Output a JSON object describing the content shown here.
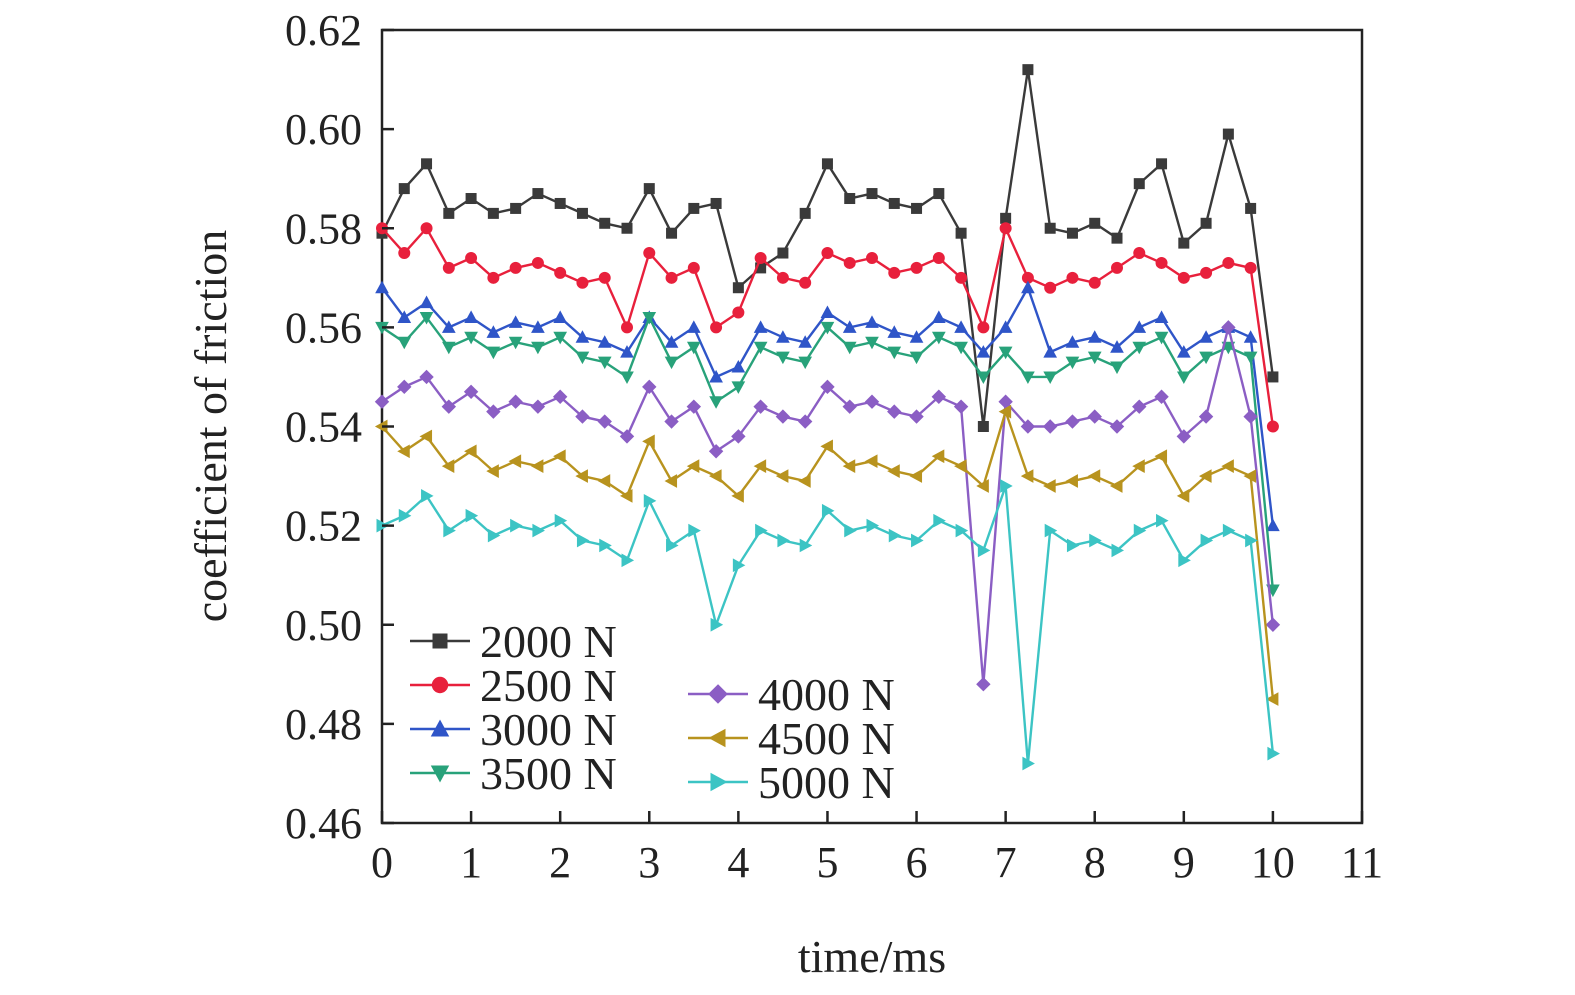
{
  "chart_data": {
    "type": "line",
    "title": "",
    "xlabel": "time/ms",
    "ylabel": "coefficient of friction",
    "xlim": [
      0,
      11
    ],
    "ylim": [
      0.46,
      0.62
    ],
    "xticks": [
      "0",
      "1",
      "2",
      "3",
      "4",
      "5",
      "6",
      "7",
      "8",
      "9",
      "10",
      "11"
    ],
    "yticks": [
      "0.46",
      "0.48",
      "0.50",
      "0.52",
      "0.54",
      "0.56",
      "0.58",
      "0.60",
      "0.62"
    ],
    "grid": false,
    "legend_position": "bottom-left",
    "x": [
      0,
      0.25,
      0.5,
      0.75,
      1,
      1.25,
      1.5,
      1.75,
      2,
      2.25,
      2.5,
      2.75,
      3,
      3.25,
      3.5,
      3.75,
      4,
      4.25,
      4.5,
      4.75,
      5,
      5.25,
      5.5,
      5.75,
      6,
      6.25,
      6.5,
      6.75,
      7,
      7.25,
      7.5,
      7.75,
      8,
      8.25,
      8.5,
      8.75,
      9,
      9.25,
      9.5,
      9.75,
      10
    ],
    "series": [
      {
        "name": "2000 N",
        "color": "#3a3a3a",
        "marker": "square",
        "values": [
          0.579,
          0.588,
          0.593,
          0.583,
          0.586,
          0.583,
          0.584,
          0.587,
          0.585,
          0.583,
          0.581,
          0.58,
          0.588,
          0.579,
          0.584,
          0.585,
          0.568,
          0.572,
          0.575,
          0.583,
          0.593,
          0.586,
          0.587,
          0.585,
          0.584,
          0.587,
          0.579,
          0.54,
          0.582,
          0.612,
          0.58,
          0.579,
          0.581,
          0.578,
          0.589,
          0.593,
          0.577,
          0.581,
          0.599,
          0.584,
          0.55
        ]
      },
      {
        "name": "2500 N",
        "color": "#e8203c",
        "marker": "circle",
        "values": [
          0.58,
          0.575,
          0.58,
          0.572,
          0.574,
          0.57,
          0.572,
          0.573,
          0.571,
          0.569,
          0.57,
          0.56,
          0.575,
          0.57,
          0.572,
          0.56,
          0.563,
          0.574,
          0.57,
          0.569,
          0.575,
          0.573,
          0.574,
          0.571,
          0.572,
          0.574,
          0.57,
          0.56,
          0.58,
          0.57,
          0.568,
          0.57,
          0.569,
          0.572,
          0.575,
          0.573,
          0.57,
          0.571,
          0.573,
          0.572,
          0.54
        ]
      },
      {
        "name": "3000 N",
        "color": "#2f55c8",
        "marker": "triangle-up",
        "values": [
          0.568,
          0.562,
          0.565,
          0.56,
          0.562,
          0.559,
          0.561,
          0.56,
          0.562,
          0.558,
          0.557,
          0.555,
          0.562,
          0.557,
          0.56,
          0.55,
          0.552,
          0.56,
          0.558,
          0.557,
          0.563,
          0.56,
          0.561,
          0.559,
          0.558,
          0.562,
          0.56,
          0.555,
          0.56,
          0.568,
          0.555,
          0.557,
          0.558,
          0.556,
          0.56,
          0.562,
          0.555,
          0.558,
          0.56,
          0.558,
          0.52
        ]
      },
      {
        "name": "3500 N",
        "color": "#28a27a",
        "marker": "triangle-down",
        "values": [
          0.56,
          0.557,
          0.562,
          0.556,
          0.558,
          0.555,
          0.557,
          0.556,
          0.558,
          0.554,
          0.553,
          0.55,
          0.562,
          0.553,
          0.556,
          0.545,
          0.548,
          0.556,
          0.554,
          0.553,
          0.56,
          0.556,
          0.557,
          0.555,
          0.554,
          0.558,
          0.556,
          0.55,
          0.555,
          0.55,
          0.55,
          0.553,
          0.554,
          0.552,
          0.556,
          0.558,
          0.55,
          0.554,
          0.556,
          0.554,
          0.507
        ]
      },
      {
        "name": "4000 N",
        "color": "#8b5ec4",
        "marker": "diamond",
        "values": [
          0.545,
          0.548,
          0.55,
          0.544,
          0.547,
          0.543,
          0.545,
          0.544,
          0.546,
          0.542,
          0.541,
          0.538,
          0.548,
          0.541,
          0.544,
          0.535,
          0.538,
          0.544,
          0.542,
          0.541,
          0.548,
          0.544,
          0.545,
          0.543,
          0.542,
          0.546,
          0.544,
          0.488,
          0.545,
          0.54,
          0.54,
          0.541,
          0.542,
          0.54,
          0.544,
          0.546,
          0.538,
          0.542,
          0.56,
          0.542,
          0.5
        ]
      },
      {
        "name": "4500 N",
        "color": "#b8931e",
        "marker": "triangle-left",
        "values": [
          0.54,
          0.535,
          0.538,
          0.532,
          0.535,
          0.531,
          0.533,
          0.532,
          0.534,
          0.53,
          0.529,
          0.526,
          0.537,
          0.529,
          0.532,
          0.53,
          0.526,
          0.532,
          0.53,
          0.529,
          0.536,
          0.532,
          0.533,
          0.531,
          0.53,
          0.534,
          0.532,
          0.528,
          0.543,
          0.53,
          0.528,
          0.529,
          0.53,
          0.528,
          0.532,
          0.534,
          0.526,
          0.53,
          0.532,
          0.53,
          0.485
        ]
      },
      {
        "name": "5000 N",
        "color": "#3cc4c4",
        "marker": "triangle-right",
        "values": [
          0.52,
          0.522,
          0.526,
          0.519,
          0.522,
          0.518,
          0.52,
          0.519,
          0.521,
          0.517,
          0.516,
          0.513,
          0.525,
          0.516,
          0.519,
          0.5,
          0.512,
          0.519,
          0.517,
          0.516,
          0.523,
          0.519,
          0.52,
          0.518,
          0.517,
          0.521,
          0.519,
          0.515,
          0.528,
          0.472,
          0.519,
          0.516,
          0.517,
          0.515,
          0.519,
          0.521,
          0.513,
          0.517,
          0.519,
          0.517,
          0.474
        ]
      }
    ]
  }
}
